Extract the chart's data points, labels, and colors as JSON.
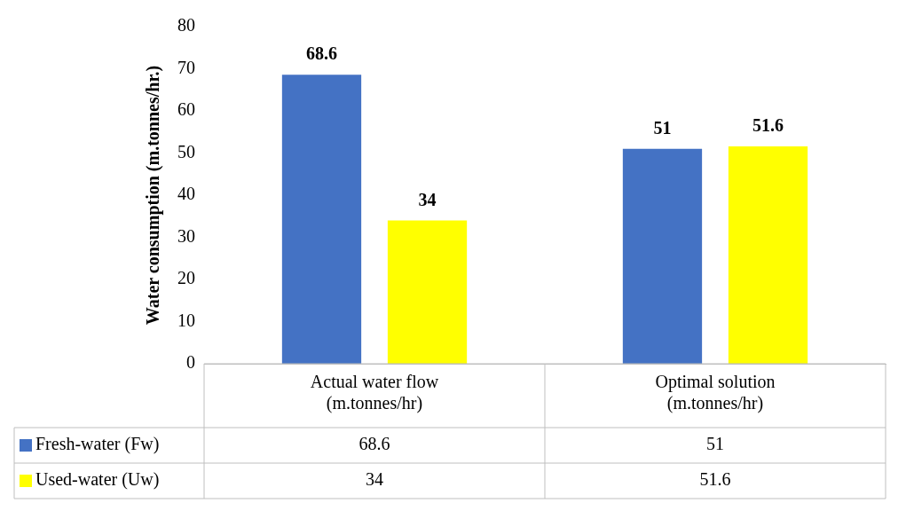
{
  "chart_data": {
    "type": "bar",
    "ylabel": "Water consumption (m.tonnes/hr.)",
    "categories": [
      "Actual water flow\n(m.tonnes/hr)",
      "Optimal solution\n(m.tonnes/hr)"
    ],
    "series": [
      {
        "name": "Fresh-water (Fw)",
        "color": "#4472c4",
        "values": [
          68.6,
          51
        ],
        "value_labels": [
          "68.6",
          "51"
        ]
      },
      {
        "name": "Used-water (Uw)",
        "color": "#ffff00",
        "values": [
          34,
          51.6
        ],
        "value_labels": [
          "34",
          "51.6"
        ]
      }
    ],
    "ylim": [
      0,
      80
    ],
    "yticks": [
      0,
      10,
      20,
      30,
      40,
      50,
      60,
      70,
      80
    ],
    "grid": false,
    "data_labels": true,
    "legend": "bottom"
  }
}
